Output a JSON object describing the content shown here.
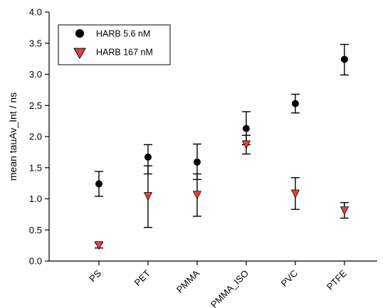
{
  "chart_data": {
    "type": "scatter",
    "categories": [
      "PS",
      "PET",
      "PMMA",
      "PMMA_ISO",
      "PVC",
      "PTFE"
    ],
    "ylabel": "mean tauAv_Int / ns",
    "xlabel": "",
    "ylim": [
      0,
      4.0
    ],
    "yticks": [
      "0.0",
      "0.5",
      "1.0",
      "1.5",
      "2.0",
      "2.5",
      "3.0",
      "3.5",
      "4.0"
    ],
    "grid": false,
    "legend_position": "top-left",
    "series": [
      {
        "name": "HARB 5.6 nM",
        "marker": "circle",
        "color": "#000000",
        "values": [
          1.24,
          1.67,
          1.59,
          2.13,
          2.53,
          3.24
        ],
        "err_low": [
          1.04,
          1.4,
          1.31,
          1.87,
          2.38,
          2.99
        ],
        "err_high": [
          1.44,
          1.87,
          1.88,
          2.4,
          2.68,
          3.48
        ]
      },
      {
        "name": "HARB 167 nM",
        "marker": "triangle-down",
        "color": "#e8413a",
        "values": [
          0.25,
          1.04,
          1.06,
          1.87,
          1.08,
          0.81
        ],
        "err_low": [
          0.21,
          0.54,
          0.72,
          1.72,
          0.83,
          0.69
        ],
        "err_high": [
          0.29,
          1.53,
          1.4,
          2.02,
          1.34,
          0.94
        ]
      }
    ]
  }
}
